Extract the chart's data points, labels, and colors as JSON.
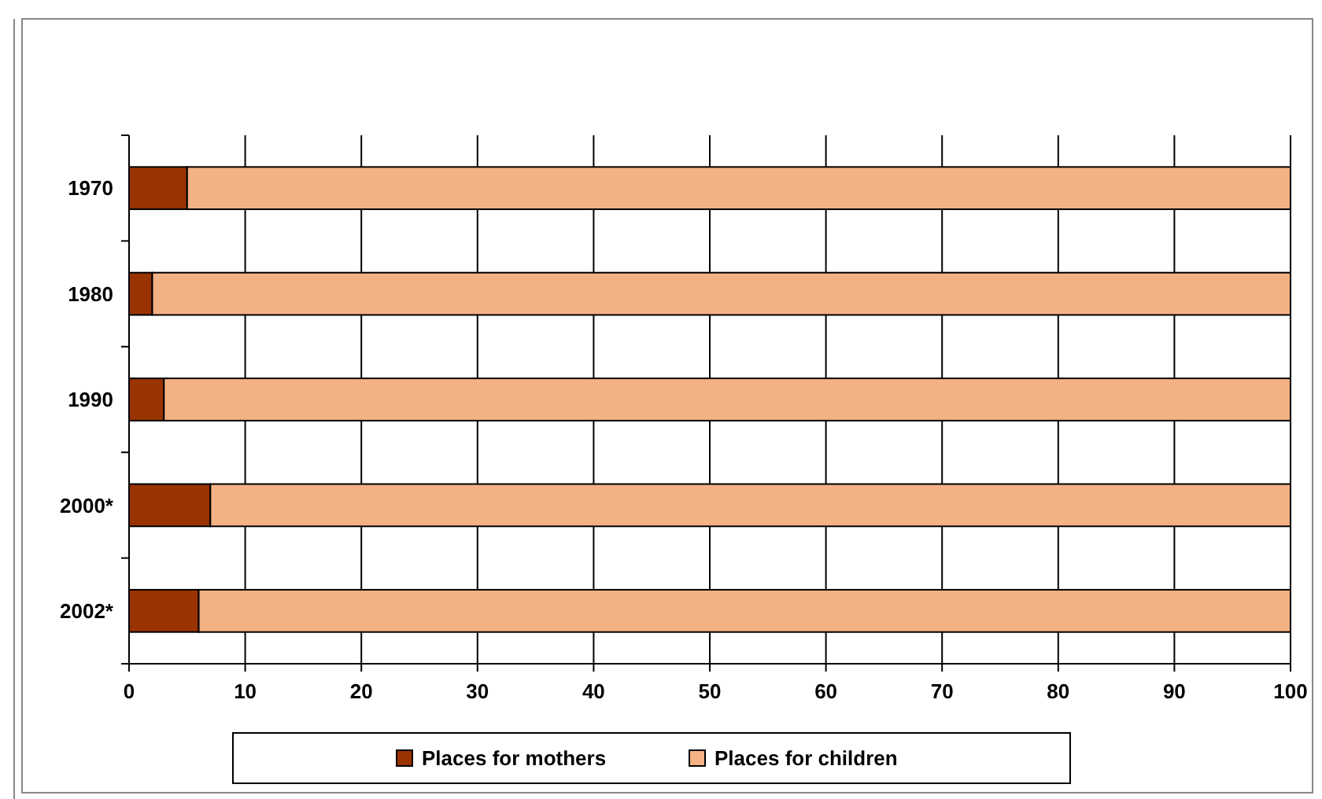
{
  "chart_data": {
    "type": "bar",
    "orientation": "horizontal",
    "stacked": true,
    "categories": [
      "1970",
      "1980",
      "1990",
      "2000*",
      "2002*"
    ],
    "series": [
      {
        "name": "Places for mothers",
        "color": "#993300",
        "values": [
          5,
          2,
          3,
          7,
          6
        ]
      },
      {
        "name": "Places for children",
        "color": "#f4b183",
        "values": [
          95,
          98,
          97,
          93,
          94
        ]
      }
    ],
    "xlim": [
      0,
      100
    ],
    "xticks": [
      0,
      10,
      20,
      30,
      40,
      50,
      60,
      70,
      80,
      90,
      100
    ],
    "grid": "x",
    "legend": "bottom"
  }
}
